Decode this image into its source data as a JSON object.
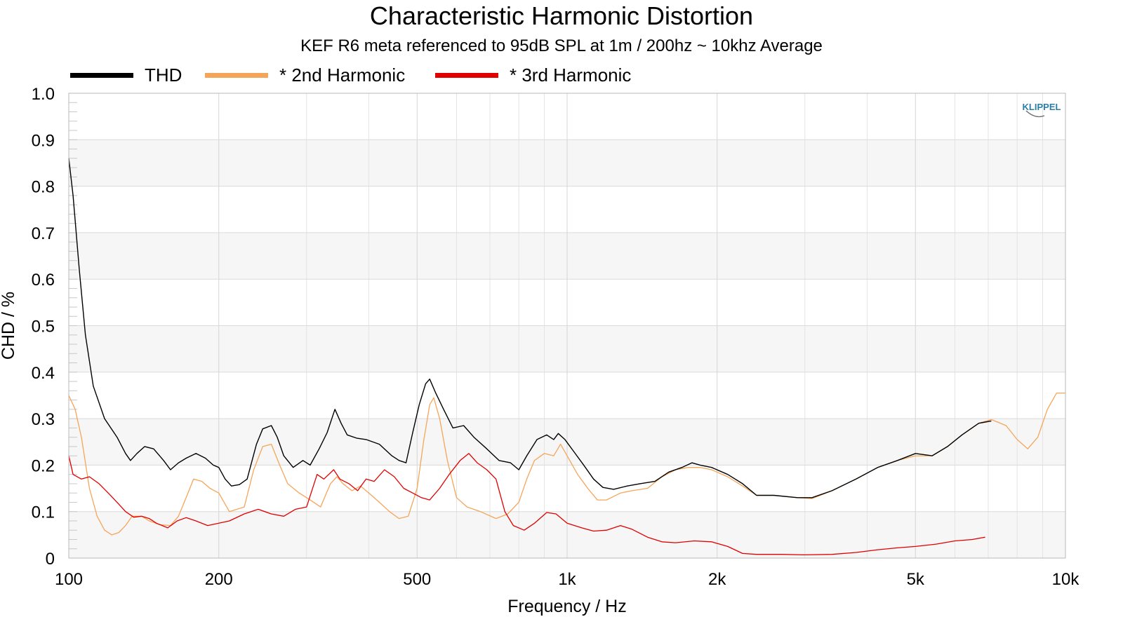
{
  "chart_data": {
    "type": "line",
    "title": "Characteristic Harmonic Distortion",
    "subtitle": "KEF R6 meta referenced to 95dB SPL at 1m / 200hz ~ 10khz Average",
    "xlabel": "Frequency / Hz",
    "ylabel": "CHD / %",
    "xscale": "log",
    "xlim": [
      100,
      10000
    ],
    "ylim": [
      0,
      1.0
    ],
    "x_ticks": [
      100,
      200,
      500,
      1000,
      2000,
      5000,
      10000
    ],
    "x_tick_labels": [
      "100",
      "200",
      "500",
      "1k",
      "2k",
      "5k",
      "10k"
    ],
    "y_ticks": [
      0,
      0.1,
      0.2,
      0.3,
      0.4,
      0.5,
      0.6,
      0.7,
      0.8,
      0.9,
      1.0
    ],
    "y_tick_labels": [
      "0",
      "0.1",
      "0.2",
      "0.3",
      "0.4",
      "0.5",
      "0.6",
      "0.7",
      "0.8",
      "0.9",
      "1.0"
    ],
    "grid": true,
    "legend_position": "top-left",
    "logo": "KLIPPEL",
    "series": [
      {
        "name": "THD",
        "color": "#000000",
        "points": [
          [
            100,
            0.86
          ],
          [
            102,
            0.78
          ],
          [
            105,
            0.62
          ],
          [
            108,
            0.48
          ],
          [
            112,
            0.37
          ],
          [
            118,
            0.3
          ],
          [
            125,
            0.26
          ],
          [
            130,
            0.225
          ],
          [
            133,
            0.21
          ],
          [
            137,
            0.225
          ],
          [
            142,
            0.24
          ],
          [
            148,
            0.235
          ],
          [
            155,
            0.21
          ],
          [
            160,
            0.19
          ],
          [
            166,
            0.205
          ],
          [
            172,
            0.215
          ],
          [
            180,
            0.225
          ],
          [
            188,
            0.215
          ],
          [
            195,
            0.2
          ],
          [
            200,
            0.195
          ],
          [
            206,
            0.17
          ],
          [
            212,
            0.155
          ],
          [
            220,
            0.158
          ],
          [
            228,
            0.17
          ],
          [
            238,
            0.245
          ],
          [
            245,
            0.278
          ],
          [
            255,
            0.285
          ],
          [
            262,
            0.26
          ],
          [
            270,
            0.22
          ],
          [
            282,
            0.195
          ],
          [
            295,
            0.21
          ],
          [
            305,
            0.2
          ],
          [
            318,
            0.235
          ],
          [
            330,
            0.27
          ],
          [
            342,
            0.32
          ],
          [
            352,
            0.29
          ],
          [
            362,
            0.265
          ],
          [
            378,
            0.258
          ],
          [
            395,
            0.255
          ],
          [
            420,
            0.245
          ],
          [
            445,
            0.22
          ],
          [
            460,
            0.21
          ],
          [
            475,
            0.205
          ],
          [
            490,
            0.27
          ],
          [
            505,
            0.33
          ],
          [
            520,
            0.375
          ],
          [
            530,
            0.385
          ],
          [
            545,
            0.355
          ],
          [
            565,
            0.32
          ],
          [
            590,
            0.28
          ],
          [
            620,
            0.285
          ],
          [
            650,
            0.26
          ],
          [
            690,
            0.235
          ],
          [
            730,
            0.21
          ],
          [
            770,
            0.205
          ],
          [
            800,
            0.19
          ],
          [
            830,
            0.22
          ],
          [
            870,
            0.255
          ],
          [
            910,
            0.265
          ],
          [
            940,
            0.255
          ],
          [
            960,
            0.268
          ],
          [
            990,
            0.255
          ],
          [
            1030,
            0.23
          ],
          [
            1080,
            0.2
          ],
          [
            1130,
            0.17
          ],
          [
            1180,
            0.152
          ],
          [
            1240,
            0.148
          ],
          [
            1320,
            0.155
          ],
          [
            1400,
            0.16
          ],
          [
            1500,
            0.165
          ],
          [
            1600,
            0.185
          ],
          [
            1700,
            0.195
          ],
          [
            1780,
            0.205
          ],
          [
            1850,
            0.2
          ],
          [
            1950,
            0.195
          ],
          [
            2100,
            0.18
          ],
          [
            2250,
            0.16
          ],
          [
            2400,
            0.135
          ],
          [
            2600,
            0.135
          ],
          [
            2900,
            0.13
          ],
          [
            3100,
            0.13
          ],
          [
            3400,
            0.145
          ],
          [
            3800,
            0.17
          ],
          [
            4200,
            0.195
          ],
          [
            4600,
            0.21
          ],
          [
            5000,
            0.225
          ],
          [
            5400,
            0.22
          ],
          [
            5800,
            0.24
          ],
          [
            6200,
            0.265
          ],
          [
            6700,
            0.29
          ],
          [
            7100,
            0.295
          ]
        ]
      },
      {
        "name": "* 2nd Harmonic",
        "color": "#f5a55a",
        "points": [
          [
            100,
            0.35
          ],
          [
            103,
            0.32
          ],
          [
            106,
            0.26
          ],
          [
            110,
            0.15
          ],
          [
            114,
            0.09
          ],
          [
            118,
            0.06
          ],
          [
            122,
            0.05
          ],
          [
            126,
            0.055
          ],
          [
            130,
            0.07
          ],
          [
            134,
            0.09
          ],
          [
            140,
            0.09
          ],
          [
            145,
            0.08
          ],
          [
            152,
            0.072
          ],
          [
            160,
            0.07
          ],
          [
            166,
            0.09
          ],
          [
            172,
            0.13
          ],
          [
            178,
            0.17
          ],
          [
            185,
            0.165
          ],
          [
            192,
            0.15
          ],
          [
            200,
            0.14
          ],
          [
            210,
            0.1
          ],
          [
            225,
            0.11
          ],
          [
            235,
            0.19
          ],
          [
            245,
            0.24
          ],
          [
            255,
            0.245
          ],
          [
            265,
            0.2
          ],
          [
            275,
            0.16
          ],
          [
            290,
            0.14
          ],
          [
            305,
            0.125
          ],
          [
            320,
            0.11
          ],
          [
            335,
            0.16
          ],
          [
            345,
            0.175
          ],
          [
            355,
            0.16
          ],
          [
            370,
            0.145
          ],
          [
            385,
            0.155
          ],
          [
            400,
            0.14
          ],
          [
            420,
            0.12
          ],
          [
            440,
            0.1
          ],
          [
            460,
            0.085
          ],
          [
            480,
            0.09
          ],
          [
            500,
            0.15
          ],
          [
            515,
            0.25
          ],
          [
            530,
            0.33
          ],
          [
            540,
            0.345
          ],
          [
            555,
            0.3
          ],
          [
            575,
            0.21
          ],
          [
            600,
            0.13
          ],
          [
            630,
            0.11
          ],
          [
            670,
            0.1
          ],
          [
            720,
            0.085
          ],
          [
            760,
            0.095
          ],
          [
            800,
            0.12
          ],
          [
            830,
            0.17
          ],
          [
            860,
            0.21
          ],
          [
            900,
            0.225
          ],
          [
            940,
            0.22
          ],
          [
            970,
            0.245
          ],
          [
            1000,
            0.22
          ],
          [
            1050,
            0.18
          ],
          [
            1100,
            0.15
          ],
          [
            1150,
            0.125
          ],
          [
            1200,
            0.125
          ],
          [
            1280,
            0.14
          ],
          [
            1350,
            0.145
          ],
          [
            1450,
            0.15
          ],
          [
            1550,
            0.175
          ],
          [
            1650,
            0.19
          ],
          [
            1750,
            0.195
          ],
          [
            1850,
            0.195
          ],
          [
            1950,
            0.19
          ],
          [
            2100,
            0.175
          ],
          [
            2250,
            0.155
          ],
          [
            2400,
            0.135
          ],
          [
            2600,
            0.135
          ],
          [
            2900,
            0.13
          ],
          [
            3100,
            0.128
          ],
          [
            3400,
            0.145
          ],
          [
            3800,
            0.17
          ],
          [
            4200,
            0.195
          ],
          [
            4600,
            0.21
          ],
          [
            5000,
            0.22
          ],
          [
            5400,
            0.22
          ],
          [
            5800,
            0.24
          ],
          [
            6200,
            0.265
          ],
          [
            6700,
            0.29
          ],
          [
            7100,
            0.298
          ],
          [
            7600,
            0.285
          ],
          [
            8000,
            0.255
          ],
          [
            8400,
            0.235
          ],
          [
            8800,
            0.26
          ],
          [
            9200,
            0.32
          ],
          [
            9600,
            0.355
          ],
          [
            10000,
            0.355
          ]
        ]
      },
      {
        "name": "* 3rd Harmonic",
        "color": "#e00000",
        "points": [
          [
            100,
            0.22
          ],
          [
            102,
            0.18
          ],
          [
            106,
            0.17
          ],
          [
            110,
            0.175
          ],
          [
            115,
            0.16
          ],
          [
            120,
            0.14
          ],
          [
            125,
            0.12
          ],
          [
            130,
            0.1
          ],
          [
            135,
            0.088
          ],
          [
            140,
            0.09
          ],
          [
            145,
            0.085
          ],
          [
            150,
            0.075
          ],
          [
            158,
            0.065
          ],
          [
            165,
            0.08
          ],
          [
            172,
            0.087
          ],
          [
            180,
            0.08
          ],
          [
            190,
            0.07
          ],
          [
            200,
            0.075
          ],
          [
            210,
            0.08
          ],
          [
            225,
            0.095
          ],
          [
            240,
            0.105
          ],
          [
            255,
            0.095
          ],
          [
            270,
            0.09
          ],
          [
            285,
            0.105
          ],
          [
            300,
            0.11
          ],
          [
            315,
            0.18
          ],
          [
            325,
            0.17
          ],
          [
            340,
            0.19
          ],
          [
            350,
            0.17
          ],
          [
            365,
            0.16
          ],
          [
            380,
            0.145
          ],
          [
            395,
            0.17
          ],
          [
            410,
            0.165
          ],
          [
            430,
            0.19
          ],
          [
            450,
            0.175
          ],
          [
            470,
            0.15
          ],
          [
            490,
            0.14
          ],
          [
            510,
            0.13
          ],
          [
            530,
            0.125
          ],
          [
            555,
            0.15
          ],
          [
            580,
            0.18
          ],
          [
            610,
            0.21
          ],
          [
            635,
            0.225
          ],
          [
            660,
            0.205
          ],
          [
            690,
            0.19
          ],
          [
            720,
            0.17
          ],
          [
            750,
            0.1
          ],
          [
            780,
            0.07
          ],
          [
            820,
            0.06
          ],
          [
            860,
            0.075
          ],
          [
            910,
            0.098
          ],
          [
            950,
            0.095
          ],
          [
            1000,
            0.075
          ],
          [
            1070,
            0.065
          ],
          [
            1130,
            0.058
          ],
          [
            1200,
            0.06
          ],
          [
            1280,
            0.07
          ],
          [
            1350,
            0.062
          ],
          [
            1450,
            0.045
          ],
          [
            1550,
            0.035
          ],
          [
            1650,
            0.033
          ],
          [
            1800,
            0.037
          ],
          [
            1950,
            0.035
          ],
          [
            2100,
            0.025
          ],
          [
            2250,
            0.01
          ],
          [
            2400,
            0.008
          ],
          [
            2700,
            0.008
          ],
          [
            3000,
            0.007
          ],
          [
            3400,
            0.008
          ],
          [
            3800,
            0.012
          ],
          [
            4200,
            0.018
          ],
          [
            4600,
            0.022
          ],
          [
            5000,
            0.025
          ],
          [
            5500,
            0.03
          ],
          [
            6000,
            0.037
          ],
          [
            6500,
            0.04
          ],
          [
            6900,
            0.045
          ]
        ]
      }
    ]
  }
}
